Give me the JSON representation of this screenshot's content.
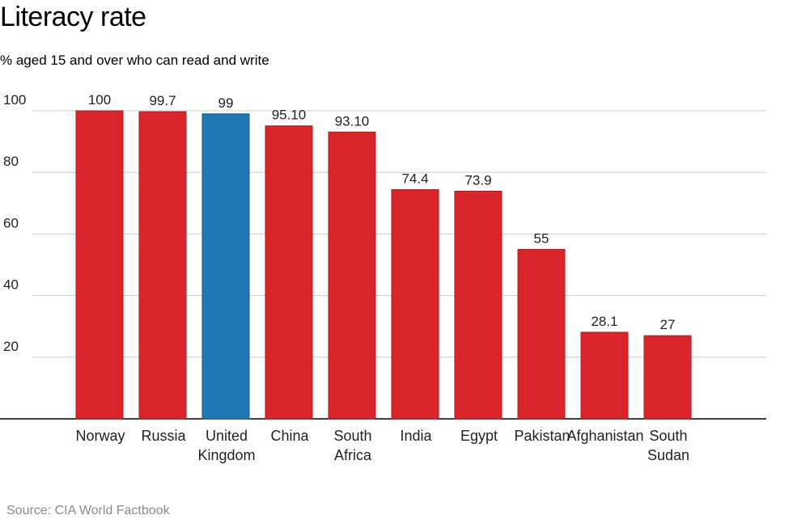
{
  "title": "Literacy rate",
  "subtitle": "% aged 15 and over who can read and write",
  "source": "Source: CIA World Factbook",
  "colors": {
    "default_bar": "#d9262b",
    "highlight_bar": "#1f77b4",
    "grid": "#cccccc",
    "axis": "#000000"
  },
  "chart_data": {
    "type": "bar",
    "categories": [
      "Norway",
      "Russia",
      "United Kingdom",
      "China",
      "South Africa",
      "India",
      "Egypt",
      "Pakistan",
      "Afghanistan",
      "South Sudan"
    ],
    "category_lines": [
      [
        "Norway"
      ],
      [
        "Russia"
      ],
      [
        "United",
        "Kingdom"
      ],
      [
        "China"
      ],
      [
        "South",
        "Africa"
      ],
      [
        "India"
      ],
      [
        "Egypt"
      ],
      [
        "Pakistan"
      ],
      [
        "Afghanistan"
      ],
      [
        "South",
        "Sudan"
      ]
    ],
    "values": [
      100,
      99.7,
      99,
      95.1,
      93.1,
      74.4,
      73.9,
      55,
      28.1,
      27
    ],
    "value_labels": [
      "100",
      "99.7",
      "99",
      "95.10",
      "93.10",
      "74.4",
      "73.9",
      "55",
      "28.1",
      "27"
    ],
    "highlight": "United Kingdom",
    "yticks": [
      20,
      40,
      60,
      80,
      100
    ],
    "ylim": [
      0,
      100
    ],
    "grid": true,
    "xlabel": "",
    "ylabel": ""
  }
}
